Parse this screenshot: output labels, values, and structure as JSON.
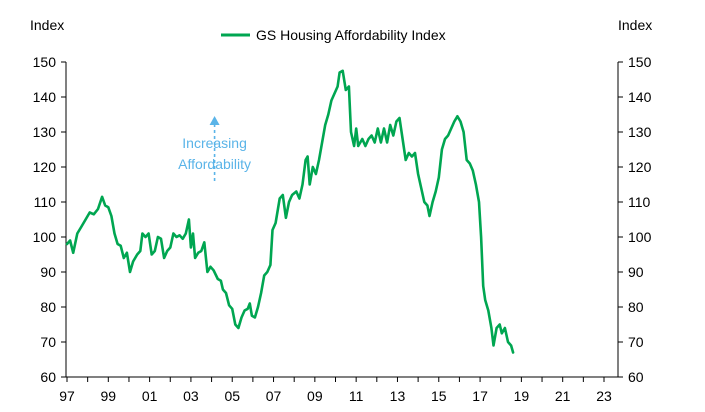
{
  "chart_data": {
    "type": "line",
    "title": "",
    "ylabel_left": "Index",
    "ylabel_right": "Index",
    "ylim": [
      60,
      150
    ],
    "yticks": [
      60,
      70,
      80,
      90,
      100,
      110,
      120,
      130,
      140,
      150
    ],
    "xlim": [
      1997,
      2023.7
    ],
    "xticks": [
      {
        "x": 1997,
        "label": "97"
      },
      {
        "x": 1999,
        "label": "99"
      },
      {
        "x": 2001,
        "label": "01"
      },
      {
        "x": 2003,
        "label": "03"
      },
      {
        "x": 2005,
        "label": "05"
      },
      {
        "x": 2007,
        "label": "07"
      },
      {
        "x": 2009,
        "label": "09"
      },
      {
        "x": 2011,
        "label": "11"
      },
      {
        "x": 2013,
        "label": "13"
      },
      {
        "x": 2015,
        "label": "15"
      },
      {
        "x": 2017,
        "label": "17"
      },
      {
        "x": 2019,
        "label": "19"
      },
      {
        "x": 2021,
        "label": "21"
      },
      {
        "x": 2023,
        "label": "23"
      }
    ],
    "grid": false,
    "legend_position": "top-center",
    "annotation": {
      "lines": [
        "Increasing",
        "Affordability"
      ],
      "arrow": "up",
      "x": 2004,
      "y_text": 125.5,
      "y_arrow_from": 116,
      "y_arrow_to": 134
    },
    "series": [
      {
        "name": "GS Housing Affordability Index",
        "color": "#00a651",
        "points": [
          [
            1997.0,
            98
          ],
          [
            1997.15,
            99
          ],
          [
            1997.3,
            95.5
          ],
          [
            1997.5,
            101
          ],
          [
            1997.7,
            103
          ],
          [
            1997.9,
            105
          ],
          [
            1998.1,
            107
          ],
          [
            1998.3,
            106.5
          ],
          [
            1998.5,
            108
          ],
          [
            1998.7,
            111.5
          ],
          [
            1998.85,
            109
          ],
          [
            1999.0,
            108.5
          ],
          [
            1999.15,
            106
          ],
          [
            1999.3,
            101
          ],
          [
            1999.45,
            98
          ],
          [
            1999.6,
            97.5
          ],
          [
            1999.75,
            94
          ],
          [
            1999.9,
            95.5
          ],
          [
            2000.05,
            90
          ],
          [
            2000.2,
            93
          ],
          [
            2000.4,
            95
          ],
          [
            2000.55,
            96
          ],
          [
            2000.65,
            101
          ],
          [
            2000.8,
            100
          ],
          [
            2000.95,
            101
          ],
          [
            2001.1,
            95
          ],
          [
            2001.25,
            96
          ],
          [
            2001.4,
            100
          ],
          [
            2001.55,
            99.5
          ],
          [
            2001.7,
            94
          ],
          [
            2001.85,
            96
          ],
          [
            2002.0,
            97
          ],
          [
            2002.15,
            101
          ],
          [
            2002.3,
            100
          ],
          [
            2002.45,
            100.5
          ],
          [
            2002.6,
            99.5
          ],
          [
            2002.75,
            101
          ],
          [
            2002.9,
            105
          ],
          [
            2003.0,
            97
          ],
          [
            2003.1,
            101
          ],
          [
            2003.2,
            94
          ],
          [
            2003.35,
            95.5
          ],
          [
            2003.5,
            96
          ],
          [
            2003.65,
            98.5
          ],
          [
            2003.8,
            90
          ],
          [
            2003.95,
            91.5
          ],
          [
            2004.1,
            90.5
          ],
          [
            2004.3,
            88
          ],
          [
            2004.45,
            87.5
          ],
          [
            2004.55,
            85
          ],
          [
            2004.7,
            84
          ],
          [
            2004.85,
            80.5
          ],
          [
            2005.0,
            79.5
          ],
          [
            2005.15,
            75
          ],
          [
            2005.3,
            74
          ],
          [
            2005.45,
            77
          ],
          [
            2005.6,
            79
          ],
          [
            2005.75,
            79.5
          ],
          [
            2005.85,
            81
          ],
          [
            2005.95,
            77.5
          ],
          [
            2006.1,
            77
          ],
          [
            2006.25,
            80
          ],
          [
            2006.4,
            84
          ],
          [
            2006.55,
            89
          ],
          [
            2006.7,
            90
          ],
          [
            2006.85,
            92
          ],
          [
            2006.95,
            102
          ],
          [
            2007.1,
            104
          ],
          [
            2007.3,
            111
          ],
          [
            2007.45,
            112
          ],
          [
            2007.6,
            105.5
          ],
          [
            2007.75,
            110
          ],
          [
            2007.9,
            112
          ],
          [
            2008.1,
            113
          ],
          [
            2008.25,
            111
          ],
          [
            2008.4,
            115
          ],
          [
            2008.55,
            122
          ],
          [
            2008.65,
            123
          ],
          [
            2008.75,
            115
          ],
          [
            2008.9,
            120
          ],
          [
            2009.05,
            118
          ],
          [
            2009.2,
            122
          ],
          [
            2009.35,
            127
          ],
          [
            2009.5,
            132
          ],
          [
            2009.65,
            135
          ],
          [
            2009.8,
            139
          ],
          [
            2009.95,
            141
          ],
          [
            2010.1,
            143
          ],
          [
            2010.2,
            147
          ],
          [
            2010.35,
            147.5
          ],
          [
            2010.5,
            142
          ],
          [
            2010.65,
            143
          ],
          [
            2010.75,
            130
          ],
          [
            2010.9,
            126
          ],
          [
            2011.0,
            131
          ],
          [
            2011.1,
            126
          ],
          [
            2011.3,
            128
          ],
          [
            2011.45,
            126
          ],
          [
            2011.6,
            128
          ],
          [
            2011.75,
            129
          ],
          [
            2011.9,
            127
          ],
          [
            2012.05,
            131
          ],
          [
            2012.2,
            127
          ],
          [
            2012.35,
            131
          ],
          [
            2012.5,
            127
          ],
          [
            2012.65,
            132
          ],
          [
            2012.8,
            129
          ],
          [
            2012.95,
            133
          ],
          [
            2013.1,
            134
          ],
          [
            2013.25,
            128
          ],
          [
            2013.4,
            122
          ],
          [
            2013.55,
            124
          ],
          [
            2013.7,
            123
          ],
          [
            2013.85,
            124
          ],
          [
            2014.0,
            118
          ],
          [
            2014.15,
            114
          ],
          [
            2014.3,
            110
          ],
          [
            2014.45,
            109
          ],
          [
            2014.55,
            106
          ],
          [
            2014.7,
            110
          ],
          [
            2014.85,
            113
          ],
          [
            2015.0,
            117
          ],
          [
            2015.15,
            125
          ],
          [
            2015.3,
            128
          ],
          [
            2015.45,
            129
          ],
          [
            2015.6,
            131
          ],
          [
            2015.75,
            133
          ],
          [
            2015.9,
            134.5
          ],
          [
            2016.05,
            133
          ],
          [
            2016.2,
            130
          ],
          [
            2016.35,
            122
          ],
          [
            2016.5,
            121
          ],
          [
            2016.65,
            119
          ],
          [
            2016.8,
            115
          ],
          [
            2016.95,
            110
          ],
          [
            2017.05,
            100
          ],
          [
            2017.15,
            86
          ],
          [
            2017.25,
            82
          ],
          [
            2017.4,
            79
          ],
          [
            2017.55,
            74
          ],
          [
            2017.65,
            69
          ],
          [
            2017.8,
            74
          ],
          [
            2017.95,
            75
          ],
          [
            2018.05,
            72.5
          ],
          [
            2018.2,
            74
          ],
          [
            2018.35,
            70
          ],
          [
            2018.5,
            69
          ],
          [
            2018.6,
            67
          ]
        ]
      }
    ]
  }
}
